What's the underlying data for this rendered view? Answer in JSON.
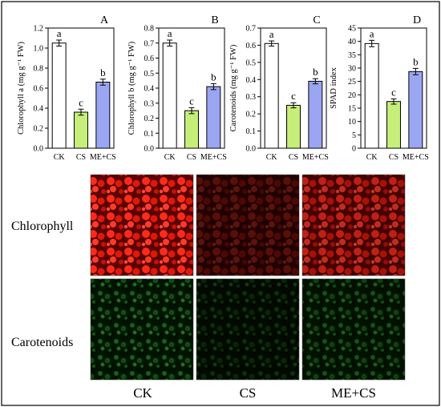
{
  "chart_data": [
    {
      "type": "bar",
      "panel_letter": "A",
      "ylabel": "Chlorophyll a (mg g⁻¹ FW)",
      "categories": [
        "CK",
        "CS",
        "ME+CS"
      ],
      "values": [
        1.05,
        0.36,
        0.66
      ],
      "errors": [
        0.03,
        0.03,
        0.03
      ],
      "significance": [
        "a",
        "c",
        "b"
      ],
      "ylim": [
        0,
        1.2
      ],
      "yticks": [
        "0.0",
        "0.2",
        "0.4",
        "0.6",
        "0.8",
        "1.0",
        "1.2"
      ],
      "tick_values": [
        0,
        0.2,
        0.4,
        0.6,
        0.8,
        1.0,
        1.2
      ],
      "bar_colors": [
        "#ffffff",
        "#c6ef7a",
        "#9aa6f2"
      ]
    },
    {
      "type": "bar",
      "panel_letter": "B",
      "ylabel": "Chlorophyll b (mg g⁻¹ FW)",
      "categories": [
        "CK",
        "CS",
        "ME+CS"
      ],
      "values": [
        0.7,
        0.25,
        0.41
      ],
      "errors": [
        0.02,
        0.02,
        0.02
      ],
      "significance": [
        "a",
        "c",
        "b"
      ],
      "ylim": [
        0,
        0.8
      ],
      "yticks": [
        "0.0",
        "0.1",
        "0.2",
        "0.3",
        "0.4",
        "0.5",
        "0.6",
        "0.7",
        "0.8"
      ],
      "tick_values": [
        0,
        0.1,
        0.2,
        0.3,
        0.4,
        0.5,
        0.6,
        0.7,
        0.8
      ],
      "bar_colors": [
        "#ffffff",
        "#c6ef7a",
        "#9aa6f2"
      ]
    },
    {
      "type": "bar",
      "panel_letter": "C",
      "ylabel": "Carotenoids (mg g⁻¹ FW)",
      "categories": [
        "CK",
        "CS",
        "ME+CS"
      ],
      "values": [
        0.61,
        0.25,
        0.39
      ],
      "errors": [
        0.015,
        0.015,
        0.015
      ],
      "significance": [
        "a",
        "c",
        "b"
      ],
      "ylim": [
        0,
        0.7
      ],
      "yticks": [
        "0.0",
        "0.1",
        "0.2",
        "0.3",
        "0.4",
        "0.5",
        "0.6",
        "0.7"
      ],
      "tick_values": [
        0,
        0.1,
        0.2,
        0.3,
        0.4,
        0.5,
        0.6,
        0.7
      ],
      "bar_colors": [
        "#ffffff",
        "#c6ef7a",
        "#9aa6f2"
      ]
    },
    {
      "type": "bar",
      "panel_letter": "D",
      "ylabel": "SPAD index",
      "categories": [
        "CK",
        "CS",
        "ME+CS"
      ],
      "values": [
        39.2,
        17.5,
        28.7
      ],
      "errors": [
        1.2,
        1.0,
        1.2
      ],
      "significance": [
        "a",
        "c",
        "b"
      ],
      "ylim": [
        0,
        45
      ],
      "yticks": [
        "0",
        "5",
        "10",
        "15",
        "20",
        "25",
        "30",
        "35",
        "40",
        "45"
      ],
      "tick_values": [
        0,
        5,
        10,
        15,
        20,
        25,
        30,
        35,
        40,
        45
      ],
      "bar_colors": [
        "#ffffff",
        "#c6ef7a",
        "#9aa6f2"
      ]
    }
  ],
  "micrographs": {
    "row_labels": [
      "Chlorophyll",
      "Carotenoids"
    ],
    "column_labels": [
      "CK",
      "CS",
      "ME+CS"
    ],
    "row_colors": [
      "#e01010",
      "#1fae1f"
    ],
    "intensity": [
      [
        1.0,
        0.35,
        0.75
      ],
      [
        0.7,
        0.35,
        0.6
      ]
    ]
  }
}
